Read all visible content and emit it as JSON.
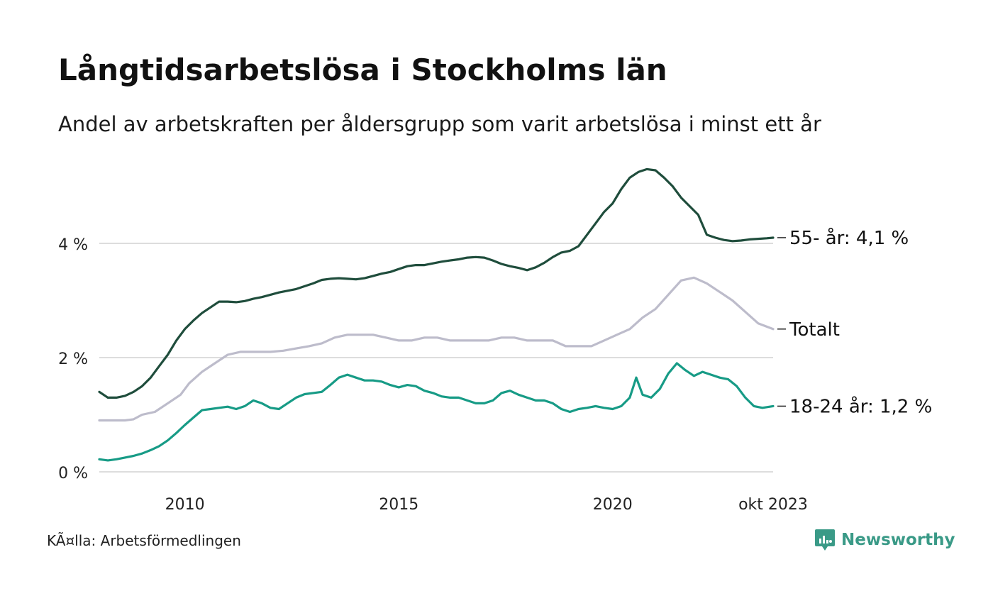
{
  "header": {
    "title": "Långtidsarbetslösa i Stockholms län",
    "subtitle": "Andel av arbetskraften per åldersgrupp som varit arbetslösa i minst ett år"
  },
  "footer": {
    "source": "KÃ¤lla: Arbetsförmedlingen",
    "brand": "Newsworthy"
  },
  "colors": {
    "older": "#1f4d3c",
    "total": "#bdbccb",
    "young": "#179b86",
    "grid": "#dddddd",
    "brand": "#3a9a87"
  },
  "chart_data": {
    "type": "line",
    "title": "Långtidsarbetslösa i Stockholms län",
    "xlabel": "",
    "ylabel": "",
    "x_range": [
      2008.0,
      2023.75
    ],
    "ylim": [
      0,
      5.4
    ],
    "y_ticks": [
      0,
      2,
      4
    ],
    "y_tick_labels": [
      "0 %",
      "2 %",
      "4 %"
    ],
    "x_ticks": [
      2010,
      2015,
      2020,
      2023.75
    ],
    "x_tick_labels": [
      "2010",
      "2015",
      "2020",
      "okt 2023"
    ],
    "grid": true,
    "series": [
      {
        "name": "55- år",
        "end_label": "55- år: 4,1 %",
        "x": [
          2008.0,
          2008.2,
          2008.4,
          2008.6,
          2008.8,
          2009.0,
          2009.2,
          2009.4,
          2009.6,
          2009.8,
          2010.0,
          2010.2,
          2010.4,
          2010.6,
          2010.8,
          2011.0,
          2011.2,
          2011.4,
          2011.6,
          2011.8,
          2012.0,
          2012.2,
          2012.4,
          2012.6,
          2012.8,
          2013.0,
          2013.2,
          2013.4,
          2013.6,
          2013.8,
          2014.0,
          2014.2,
          2014.4,
          2014.6,
          2014.8,
          2015.0,
          2015.2,
          2015.4,
          2015.6,
          2015.8,
          2016.0,
          2016.2,
          2016.4,
          2016.6,
          2016.8,
          2017.0,
          2017.2,
          2017.4,
          2017.6,
          2017.8,
          2018.0,
          2018.2,
          2018.4,
          2018.6,
          2018.8,
          2019.0,
          2019.2,
          2019.4,
          2019.6,
          2019.8,
          2020.0,
          2020.2,
          2020.4,
          2020.6,
          2020.8,
          2021.0,
          2021.2,
          2021.4,
          2021.6,
          2021.8,
          2022.0,
          2022.2,
          2022.4,
          2022.6,
          2022.8,
          2023.0,
          2023.2,
          2023.4,
          2023.6,
          2023.75
        ],
        "values": [
          1.4,
          1.3,
          1.3,
          1.33,
          1.4,
          1.5,
          1.65,
          1.85,
          2.05,
          2.3,
          2.5,
          2.65,
          2.78,
          2.88,
          2.98,
          2.98,
          2.97,
          2.99,
          3.03,
          3.06,
          3.1,
          3.14,
          3.17,
          3.2,
          3.25,
          3.3,
          3.36,
          3.38,
          3.39,
          3.38,
          3.37,
          3.39,
          3.43,
          3.47,
          3.5,
          3.55,
          3.6,
          3.62,
          3.62,
          3.65,
          3.68,
          3.7,
          3.72,
          3.75,
          3.76,
          3.75,
          3.7,
          3.64,
          3.6,
          3.57,
          3.53,
          3.58,
          3.66,
          3.76,
          3.84,
          3.87,
          3.95,
          4.15,
          4.35,
          4.55,
          4.7,
          4.95,
          5.15,
          5.25,
          5.3,
          5.28,
          5.15,
          5.0,
          4.8,
          4.65,
          4.5,
          4.15,
          4.1,
          4.06,
          4.04,
          4.05,
          4.07,
          4.08,
          4.09,
          4.1
        ]
      },
      {
        "name": "Totalt",
        "end_label": "Totalt",
        "x": [
          2008.0,
          2008.3,
          2008.6,
          2008.8,
          2009.0,
          2009.3,
          2009.6,
          2009.9,
          2010.1,
          2010.4,
          2010.7,
          2011.0,
          2011.3,
          2011.5,
          2011.7,
          2012.0,
          2012.3,
          2012.6,
          2012.9,
          2013.2,
          2013.5,
          2013.8,
          2014.1,
          2014.4,
          2014.7,
          2015.0,
          2015.3,
          2015.6,
          2015.9,
          2016.2,
          2016.5,
          2016.8,
          2017.1,
          2017.4,
          2017.7,
          2018.0,
          2018.3,
          2018.6,
          2018.9,
          2019.2,
          2019.5,
          2019.8,
          2020.1,
          2020.4,
          2020.7,
          2021.0,
          2021.3,
          2021.6,
          2021.9,
          2022.2,
          2022.5,
          2022.8,
          2023.1,
          2023.4,
          2023.75
        ],
        "values": [
          0.9,
          0.9,
          0.9,
          0.92,
          1.0,
          1.05,
          1.2,
          1.35,
          1.55,
          1.75,
          1.9,
          2.05,
          2.1,
          2.1,
          2.1,
          2.1,
          2.12,
          2.16,
          2.2,
          2.25,
          2.35,
          2.4,
          2.4,
          2.4,
          2.35,
          2.3,
          2.3,
          2.35,
          2.35,
          2.3,
          2.3,
          2.3,
          2.3,
          2.35,
          2.35,
          2.3,
          2.3,
          2.3,
          2.2,
          2.2,
          2.2,
          2.3,
          2.4,
          2.5,
          2.7,
          2.85,
          3.1,
          3.35,
          3.4,
          3.3,
          3.15,
          3.0,
          2.8,
          2.6,
          2.5
        ]
      },
      {
        "name": "18-24 år",
        "end_label": "18-24 år: 1,2 %",
        "x": [
          2008.0,
          2008.2,
          2008.4,
          2008.6,
          2008.8,
          2009.0,
          2009.2,
          2009.4,
          2009.6,
          2009.8,
          2010.0,
          2010.2,
          2010.4,
          2010.6,
          2010.8,
          2011.0,
          2011.2,
          2011.4,
          2011.6,
          2011.8,
          2012.0,
          2012.2,
          2012.4,
          2012.6,
          2012.8,
          2013.0,
          2013.2,
          2013.4,
          2013.6,
          2013.8,
          2014.0,
          2014.2,
          2014.4,
          2014.6,
          2014.8,
          2015.0,
          2015.2,
          2015.4,
          2015.6,
          2015.8,
          2016.0,
          2016.2,
          2016.4,
          2016.6,
          2016.8,
          2017.0,
          2017.2,
          2017.4,
          2017.6,
          2017.8,
          2018.0,
          2018.2,
          2018.4,
          2018.6,
          2018.8,
          2019.0,
          2019.2,
          2019.4,
          2019.6,
          2019.8,
          2020.0,
          2020.2,
          2020.4,
          2020.55,
          2020.7,
          2020.9,
          2021.1,
          2021.3,
          2021.5,
          2021.7,
          2021.9,
          2022.1,
          2022.3,
          2022.5,
          2022.7,
          2022.9,
          2023.1,
          2023.3,
          2023.5,
          2023.75
        ],
        "values": [
          0.22,
          0.2,
          0.22,
          0.25,
          0.28,
          0.32,
          0.38,
          0.45,
          0.55,
          0.68,
          0.82,
          0.95,
          1.08,
          1.1,
          1.12,
          1.14,
          1.1,
          1.15,
          1.25,
          1.2,
          1.12,
          1.1,
          1.2,
          1.3,
          1.36,
          1.38,
          1.4,
          1.52,
          1.65,
          1.7,
          1.65,
          1.6,
          1.6,
          1.58,
          1.52,
          1.48,
          1.52,
          1.5,
          1.42,
          1.38,
          1.32,
          1.3,
          1.3,
          1.25,
          1.2,
          1.2,
          1.25,
          1.38,
          1.42,
          1.35,
          1.3,
          1.25,
          1.25,
          1.2,
          1.1,
          1.05,
          1.1,
          1.12,
          1.15,
          1.12,
          1.1,
          1.15,
          1.3,
          1.65,
          1.35,
          1.3,
          1.45,
          1.72,
          1.9,
          1.78,
          1.68,
          1.75,
          1.7,
          1.65,
          1.62,
          1.5,
          1.3,
          1.15,
          1.12,
          1.15
        ]
      }
    ]
  }
}
